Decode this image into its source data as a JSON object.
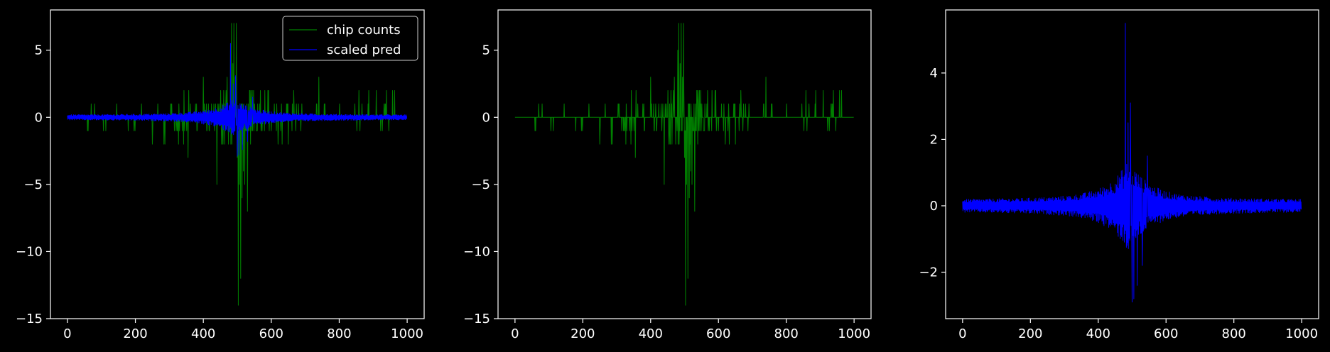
{
  "chart_data": [
    {
      "type": "line",
      "xlim": [
        -50,
        1050
      ],
      "ylim": [
        -15,
        8
      ],
      "xticks": [
        0,
        200,
        400,
        600,
        800,
        1000
      ],
      "yticks": [
        -15,
        -10,
        -5,
        0,
        5
      ],
      "legend": {
        "placement": "top-right"
      },
      "series": [
        {
          "name": "chip counts",
          "color": "#008000",
          "kind": "counts",
          "n": 1000
        },
        {
          "name": "scaled pred",
          "color": "#0000ff",
          "kind": "pred",
          "n": 1000
        }
      ],
      "count_spikes": [
        {
          "x": 470,
          "y": 3
        },
        {
          "x": 480,
          "y": 5
        },
        {
          "x": 483,
          "y": 7
        },
        {
          "x": 487,
          "y": 4
        },
        {
          "x": 490,
          "y": 7
        },
        {
          "x": 494,
          "y": 3
        },
        {
          "x": 497,
          "y": 7
        },
        {
          "x": 500,
          "y": -3
        },
        {
          "x": 503,
          "y": -14
        },
        {
          "x": 506,
          "y": -5
        },
        {
          "x": 510,
          "y": -12
        },
        {
          "x": 514,
          "y": -6
        },
        {
          "x": 518,
          "y": -4
        },
        {
          "x": 522,
          "y": -5
        },
        {
          "x": 530,
          "y": -3
        },
        {
          "x": 540,
          "y": -3
        },
        {
          "x": 460,
          "y": 2
        },
        {
          "x": 455,
          "y": -2
        },
        {
          "x": 540,
          "y": 2
        },
        {
          "x": 548,
          "y": 2
        },
        {
          "x": 590,
          "y": 2
        },
        {
          "x": 740,
          "y": 3
        },
        {
          "x": 400,
          "y": 3
        },
        {
          "x": 355,
          "y": -3
        },
        {
          "x": 250,
          "y": -2
        },
        {
          "x": 620,
          "y": -2
        },
        {
          "x": 650,
          "y": -2
        },
        {
          "x": 440,
          "y": -5
        },
        {
          "x": 530,
          "y": -7
        }
      ],
      "pred_peaks": [
        {
          "x": 480,
          "y": 5.5
        },
        {
          "x": 488,
          "y": 2.5
        },
        {
          "x": 495,
          "y": 3.1
        },
        {
          "x": 500,
          "y": -2.9
        },
        {
          "x": 505,
          "y": -2.8
        },
        {
          "x": 515,
          "y": -2.4
        },
        {
          "x": 530,
          "y": -1.8
        },
        {
          "x": 545,
          "y": 1.5
        }
      ]
    },
    {
      "type": "line",
      "xlim": [
        -50,
        1050
      ],
      "ylim": [
        -15,
        8
      ],
      "xticks": [
        0,
        200,
        400,
        600,
        800,
        1000
      ],
      "yticks": [
        -15,
        -10,
        -5,
        0,
        5
      ],
      "series": [
        {
          "color": "#008000",
          "kind": "counts",
          "n": 1000
        }
      ],
      "count_spikes": [
        {
          "x": 470,
          "y": 3
        },
        {
          "x": 480,
          "y": 5
        },
        {
          "x": 483,
          "y": 7
        },
        {
          "x": 487,
          "y": 4
        },
        {
          "x": 490,
          "y": 7
        },
        {
          "x": 494,
          "y": 3
        },
        {
          "x": 497,
          "y": 7
        },
        {
          "x": 500,
          "y": -3
        },
        {
          "x": 503,
          "y": -14
        },
        {
          "x": 506,
          "y": -5
        },
        {
          "x": 510,
          "y": -12
        },
        {
          "x": 514,
          "y": -6
        },
        {
          "x": 518,
          "y": -4
        },
        {
          "x": 522,
          "y": -5
        },
        {
          "x": 530,
          "y": -3
        },
        {
          "x": 540,
          "y": -3
        },
        {
          "x": 460,
          "y": 2
        },
        {
          "x": 455,
          "y": -2
        },
        {
          "x": 540,
          "y": 2
        },
        {
          "x": 548,
          "y": 2
        },
        {
          "x": 590,
          "y": 2
        },
        {
          "x": 740,
          "y": 3
        },
        {
          "x": 400,
          "y": 3
        },
        {
          "x": 355,
          "y": -3
        },
        {
          "x": 250,
          "y": -2
        },
        {
          "x": 620,
          "y": -2
        },
        {
          "x": 650,
          "y": -2
        },
        {
          "x": 440,
          "y": -5
        },
        {
          "x": 530,
          "y": -7
        }
      ]
    },
    {
      "type": "line",
      "xlim": [
        -50,
        1050
      ],
      "ylim": [
        -3.4,
        5.9
      ],
      "xticks": [
        0,
        200,
        400,
        600,
        800,
        1000
      ],
      "yticks": [
        -2,
        0,
        2,
        4
      ],
      "series": [
        {
          "color": "#0000ff",
          "kind": "pred",
          "n": 1000
        }
      ],
      "pred_peaks": [
        {
          "x": 480,
          "y": 5.5
        },
        {
          "x": 488,
          "y": 2.5
        },
        {
          "x": 495,
          "y": 3.1
        },
        {
          "x": 500,
          "y": -2.9
        },
        {
          "x": 505,
          "y": -2.8
        },
        {
          "x": 515,
          "y": -2.4
        },
        {
          "x": 530,
          "y": -1.8
        },
        {
          "x": 545,
          "y": 1.5
        }
      ]
    }
  ]
}
